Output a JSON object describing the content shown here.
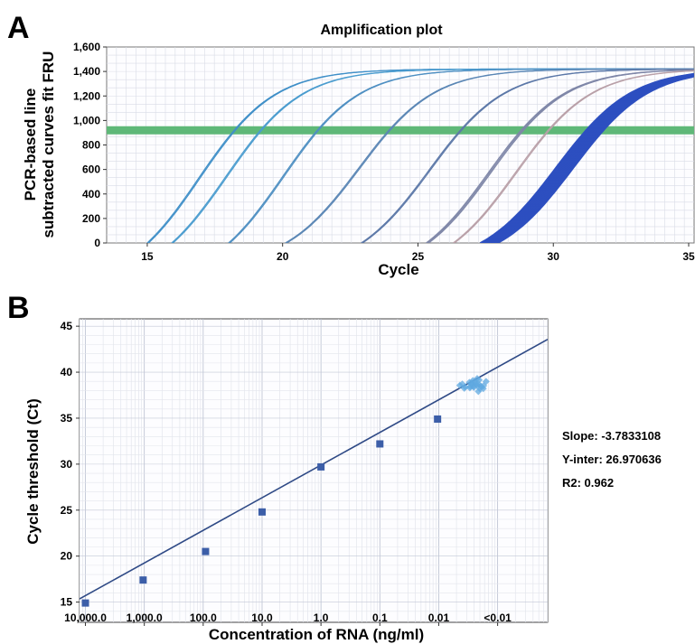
{
  "chart_data": [
    {
      "panel": "A",
      "type": "line",
      "title": "Amplification plot",
      "xlabel": "Cycle",
      "ylabel_lines": [
        "PCR-based line",
        "subtracted curves fit FRU"
      ],
      "xlim": [
        13.5,
        35.2
      ],
      "ylim": [
        0,
        1600
      ],
      "xticks": [
        15,
        20,
        25,
        30,
        35
      ],
      "yticks": [
        0,
        200,
        400,
        600,
        800,
        1000,
        1200,
        1400,
        1600
      ],
      "ytick_labels": [
        "0",
        "200",
        "400",
        "600",
        "800",
        "1,000",
        "1,200",
        "1,400",
        "1,600"
      ],
      "threshold": 920,
      "plateau": 1420,
      "grid": true,
      "series": [
        {
          "midpoint": 16.9,
          "start": 15.0,
          "count": 2,
          "color": "#3f8fc8"
        },
        {
          "midpoint": 17.9,
          "start": 15.9,
          "count": 2,
          "color": "#4a9ccf"
        },
        {
          "midpoint": 20.0,
          "start": 18.0,
          "count": 2,
          "color": "#4e8fc2"
        },
        {
          "midpoint": 22.8,
          "start": 20.1,
          "count": 2,
          "color": "#5a86b5"
        },
        {
          "midpoint": 25.4,
          "start": 22.9,
          "count": 2,
          "color": "#5c78a8"
        },
        {
          "midpoint": 27.6,
          "start": 25.3,
          "count": 3,
          "color": "#7f87a8"
        },
        {
          "midpoint": 28.6,
          "start": 26.3,
          "count": 2,
          "color": "#b9a0a8"
        },
        {
          "midpoint": 30.1,
          "start": 27.3,
          "count": 14,
          "color": "#2d4fc0"
        }
      ]
    },
    {
      "panel": "B",
      "type": "scatter",
      "xlabel": "Concentration of RNA (ng/ml)",
      "ylabel": "Cycle threshold (Ct)",
      "categories": [
        "10,000.0",
        "1,000.0",
        "100.0",
        "10.0",
        "1.0",
        "0.1",
        "0.01",
        "<0.01"
      ],
      "xlim": [
        -0.1,
        7.85
      ],
      "ylim": [
        12.8,
        45.8
      ],
      "yticks": [
        15,
        20,
        25,
        30,
        35,
        40,
        45
      ],
      "grid": true,
      "points": [
        {
          "x": 0.0,
          "y": 14.9
        },
        {
          "x": 0.98,
          "y": 17.4
        },
        {
          "x": 2.04,
          "y": 20.5
        },
        {
          "x": 3.0,
          "y": 24.8
        },
        {
          "x": 4.0,
          "y": 29.7
        },
        {
          "x": 5.0,
          "y": 32.2
        },
        {
          "x": 5.98,
          "y": 34.9
        }
      ],
      "cluster": {
        "x": 6.6,
        "y": 38.6
      },
      "fit_line": {
        "slope": 3.55,
        "intercept": 15.7
      },
      "annotations": [
        "Slope: -3.7833108",
        "Y-inter: 26.970636",
        "R2: 0.962"
      ]
    }
  ]
}
